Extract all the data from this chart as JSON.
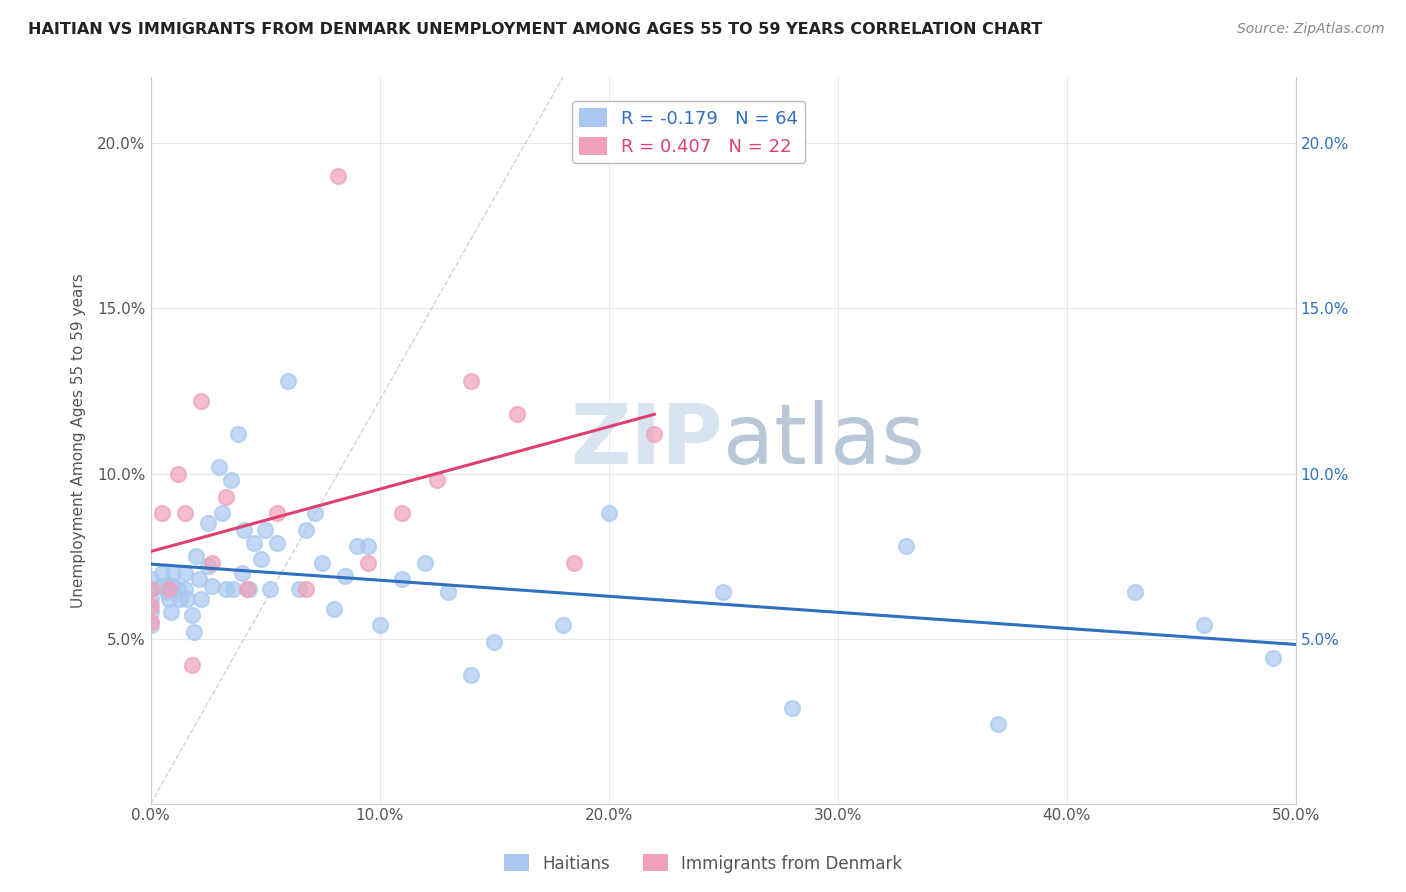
{
  "title": "HAITIAN VS IMMIGRANTS FROM DENMARK UNEMPLOYMENT AMONG AGES 55 TO 59 YEARS CORRELATION CHART",
  "source": "Source: ZipAtlas.com",
  "ylabel": "Unemployment Among Ages 55 to 59 years",
  "xlim": [
    0.0,
    0.5
  ],
  "ylim": [
    0.0,
    0.22
  ],
  "xticks": [
    0.0,
    0.1,
    0.2,
    0.3,
    0.4,
    0.5
  ],
  "yticks": [
    0.05,
    0.1,
    0.15,
    0.2
  ],
  "xtick_labels": [
    "0.0%",
    "10.0%",
    "20.0%",
    "30.0%",
    "40.0%",
    "50.0%"
  ],
  "ytick_labels": [
    "5.0%",
    "10.0%",
    "15.0%",
    "20.0%"
  ],
  "haitian_color": "#a8c8f0",
  "denmark_color": "#f0a0b8",
  "haitian_R": -0.179,
  "haitian_N": 64,
  "denmark_R": 0.407,
  "denmark_N": 22,
  "trend_haitian_color": "#3070c0",
  "trend_denmark_color": "#e04070",
  "watermark_color": "#d8e4f0",
  "background_color": "#ffffff",
  "grid_color": "#e8e8e8",
  "title_color": "#222222",
  "source_color": "#888888",
  "haitian_x": [
    0.0,
    0.0,
    0.0,
    0.0,
    0.0,
    0.005,
    0.005,
    0.007,
    0.007,
    0.008,
    0.009,
    0.01,
    0.01,
    0.012,
    0.013,
    0.015,
    0.015,
    0.016,
    0.018,
    0.019,
    0.02,
    0.021,
    0.022,
    0.025,
    0.025,
    0.027,
    0.03,
    0.031,
    0.033,
    0.035,
    0.036,
    0.038,
    0.04,
    0.041,
    0.043,
    0.045,
    0.048,
    0.05,
    0.052,
    0.055,
    0.06,
    0.065,
    0.068,
    0.072,
    0.075,
    0.08,
    0.085,
    0.09,
    0.095,
    0.1,
    0.11,
    0.12,
    0.13,
    0.14,
    0.15,
    0.18,
    0.2,
    0.25,
    0.28,
    0.33,
    0.37,
    0.43,
    0.46,
    0.49
  ],
  "haitian_y": [
    0.068,
    0.065,
    0.062,
    0.058,
    0.054,
    0.07,
    0.066,
    0.066,
    0.064,
    0.062,
    0.058,
    0.07,
    0.066,
    0.065,
    0.062,
    0.07,
    0.065,
    0.062,
    0.057,
    0.052,
    0.075,
    0.068,
    0.062,
    0.085,
    0.072,
    0.066,
    0.102,
    0.088,
    0.065,
    0.098,
    0.065,
    0.112,
    0.07,
    0.083,
    0.065,
    0.079,
    0.074,
    0.083,
    0.065,
    0.079,
    0.128,
    0.065,
    0.083,
    0.088,
    0.073,
    0.059,
    0.069,
    0.078,
    0.078,
    0.054,
    0.068,
    0.073,
    0.064,
    0.039,
    0.049,
    0.054,
    0.088,
    0.064,
    0.029,
    0.078,
    0.024,
    0.064,
    0.054,
    0.044
  ],
  "denmark_x": [
    0.0,
    0.0,
    0.0,
    0.005,
    0.008,
    0.012,
    0.015,
    0.018,
    0.022,
    0.027,
    0.033,
    0.042,
    0.055,
    0.068,
    0.082,
    0.095,
    0.11,
    0.125,
    0.14,
    0.16,
    0.185,
    0.22
  ],
  "denmark_y": [
    0.065,
    0.06,
    0.055,
    0.088,
    0.065,
    0.1,
    0.088,
    0.042,
    0.122,
    0.073,
    0.093,
    0.065,
    0.088,
    0.065,
    0.19,
    0.073,
    0.088,
    0.098,
    0.128,
    0.118,
    0.073,
    0.112
  ]
}
